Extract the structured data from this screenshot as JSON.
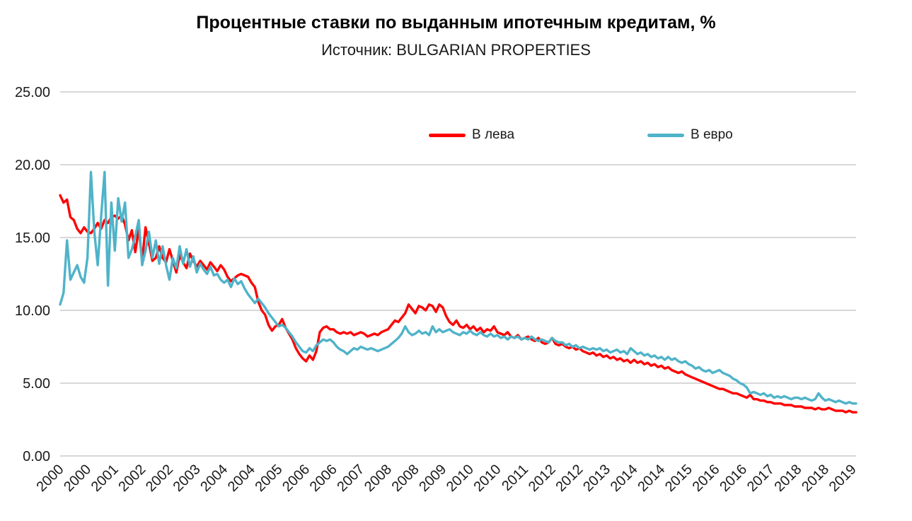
{
  "header": {
    "title": "Процентные ставки по выданным ипотечным кредитам, %",
    "subtitle": "Источник: BULGARIAN PROPERTIES"
  },
  "chart_data": {
    "type": "line",
    "title": "Процентные ставки по выданным ипотечным кредитам, %",
    "subtitle": "Источник: BULGARIAN PROPERTIES",
    "grid": "horizontal",
    "grid_color": "#BFBFBF",
    "axis_text_color": "#1a1a1a",
    "ylim": [
      0,
      25
    ],
    "y_ticks": [
      0,
      5,
      10,
      15,
      20,
      25
    ],
    "y_tick_format": "2dp",
    "x_unit": "month",
    "x_tick_step_months": 8,
    "x_tick_labels": [
      "2000",
      "2000",
      "2001",
      "2002",
      "2002",
      "2003",
      "2004",
      "2004",
      "2005",
      "2006",
      "2006",
      "2007",
      "2008",
      "2008",
      "2009",
      "2010",
      "2010",
      "2011",
      "2012",
      "2012",
      "2013",
      "2014",
      "2014",
      "2015",
      "2016",
      "2016",
      "2017",
      "2018",
      "2018",
      "2019"
    ],
    "legend_position": "top-center-inside",
    "series": [
      {
        "name": "В лева",
        "color": "#FF0000",
        "values": [
          17.9,
          17.4,
          17.6,
          16.4,
          16.2,
          15.6,
          15.3,
          15.7,
          15.4,
          15.3,
          15.6,
          16.0,
          15.6,
          16.2,
          16.0,
          16.4,
          16.5,
          16.3,
          16.5,
          15.9,
          14.8,
          15.5,
          14.0,
          15.6,
          13.4,
          15.7,
          14.6,
          13.4,
          13.6,
          14.4,
          13.6,
          13.3,
          14.2,
          13.4,
          12.6,
          13.8,
          13.3,
          12.9,
          13.9,
          13.4,
          13.0,
          13.4,
          13.1,
          12.8,
          13.3,
          13.0,
          12.7,
          13.1,
          12.8,
          12.3,
          12.0,
          12.2,
          12.4,
          12.5,
          12.4,
          12.3,
          11.9,
          11.6,
          10.6,
          10.0,
          9.7,
          9.0,
          8.6,
          8.9,
          9.0,
          9.4,
          8.8,
          8.4,
          8.0,
          7.4,
          7.0,
          6.7,
          6.5,
          6.9,
          6.6,
          7.2,
          8.5,
          8.8,
          8.9,
          8.7,
          8.7,
          8.5,
          8.4,
          8.5,
          8.4,
          8.5,
          8.3,
          8.4,
          8.5,
          8.4,
          8.2,
          8.3,
          8.4,
          8.3,
          8.5,
          8.6,
          8.7,
          9.0,
          9.3,
          9.2,
          9.5,
          9.8,
          10.4,
          10.1,
          9.8,
          10.3,
          10.2,
          10.0,
          10.4,
          10.3,
          9.9,
          10.4,
          10.2,
          9.6,
          9.2,
          9.0,
          9.3,
          8.9,
          8.8,
          9.0,
          8.7,
          8.9,
          8.6,
          8.8,
          8.5,
          8.7,
          8.6,
          8.9,
          8.5,
          8.4,
          8.3,
          8.5,
          8.2,
          8.1,
          8.3,
          8.0,
          8.1,
          8.2,
          8.0,
          7.9,
          8.1,
          7.8,
          7.7,
          7.8,
          8.1,
          7.7,
          7.6,
          7.7,
          7.5,
          7.4,
          7.5,
          7.3,
          7.4,
          7.2,
          7.1,
          7.0,
          7.1,
          6.9,
          7.0,
          6.8,
          6.9,
          6.7,
          6.8,
          6.6,
          6.7,
          6.5,
          6.6,
          6.4,
          6.6,
          6.4,
          6.5,
          6.3,
          6.4,
          6.2,
          6.3,
          6.1,
          6.2,
          6.0,
          6.1,
          5.9,
          5.8,
          5.7,
          5.8,
          5.6,
          5.5,
          5.4,
          5.3,
          5.2,
          5.1,
          5.0,
          4.9,
          4.8,
          4.7,
          4.6,
          4.6,
          4.5,
          4.4,
          4.3,
          4.3,
          4.2,
          4.1,
          4.0,
          4.2,
          3.9,
          3.9,
          3.8,
          3.8,
          3.7,
          3.7,
          3.6,
          3.6,
          3.6,
          3.5,
          3.5,
          3.5,
          3.4,
          3.4,
          3.4,
          3.3,
          3.3,
          3.3,
          3.2,
          3.3,
          3.2,
          3.2,
          3.3,
          3.2,
          3.1,
          3.1,
          3.1,
          3.0,
          3.1,
          3.0,
          3.0
        ]
      },
      {
        "name": "В евро",
        "color": "#4FB3C9",
        "values": [
          10.4,
          11.2,
          14.8,
          12.1,
          12.6,
          13.1,
          12.3,
          11.9,
          13.6,
          19.5,
          15.4,
          13.1,
          16.4,
          19.5,
          11.7,
          17.4,
          14.1,
          17.7,
          16.1,
          17.4,
          13.6,
          14.2,
          15.1,
          16.2,
          13.1,
          14.1,
          15.4,
          13.6,
          14.8,
          13.2,
          14.4,
          13.1,
          12.1,
          13.6,
          12.9,
          14.4,
          13.2,
          14.2,
          13.0,
          13.7,
          12.6,
          13.2,
          12.8,
          12.5,
          13.0,
          12.4,
          12.5,
          12.1,
          11.9,
          12.1,
          11.6,
          12.2,
          11.8,
          12.0,
          11.5,
          11.1,
          10.8,
          10.5,
          10.8,
          10.5,
          10.2,
          9.8,
          9.5,
          9.2,
          8.9,
          9.0,
          8.8,
          8.5,
          8.2,
          7.8,
          7.5,
          7.2,
          7.1,
          7.4,
          7.2,
          7.6,
          7.8,
          8.0,
          7.9,
          8.0,
          7.8,
          7.5,
          7.3,
          7.2,
          7.0,
          7.2,
          7.4,
          7.3,
          7.5,
          7.4,
          7.3,
          7.4,
          7.3,
          7.2,
          7.3,
          7.4,
          7.5,
          7.7,
          7.9,
          8.1,
          8.4,
          8.9,
          8.5,
          8.3,
          8.4,
          8.6,
          8.4,
          8.5,
          8.3,
          8.9,
          8.5,
          8.7,
          8.5,
          8.6,
          8.7,
          8.5,
          8.4,
          8.3,
          8.5,
          8.4,
          8.6,
          8.4,
          8.3,
          8.5,
          8.3,
          8.2,
          8.4,
          8.2,
          8.3,
          8.1,
          8.2,
          8.0,
          8.2,
          8.1,
          8.2,
          8.0,
          8.1,
          8.0,
          8.2,
          8.0,
          7.9,
          8.0,
          7.9,
          7.8,
          8.1,
          7.9,
          7.8,
          7.8,
          7.6,
          7.7,
          7.5,
          7.6,
          7.4,
          7.5,
          7.4,
          7.3,
          7.4,
          7.3,
          7.4,
          7.2,
          7.3,
          7.1,
          7.2,
          7.3,
          7.1,
          7.2,
          7.0,
          7.4,
          7.2,
          7.0,
          7.1,
          6.9,
          7.0,
          6.8,
          6.9,
          6.7,
          6.8,
          6.6,
          6.8,
          6.6,
          6.7,
          6.5,
          6.4,
          6.5,
          6.3,
          6.2,
          6.0,
          6.1,
          5.9,
          5.8,
          5.9,
          5.7,
          5.8,
          5.9,
          5.7,
          5.6,
          5.5,
          5.3,
          5.2,
          5.0,
          4.9,
          4.7,
          4.3,
          4.4,
          4.3,
          4.2,
          4.3,
          4.1,
          4.2,
          4.0,
          4.1,
          4.0,
          4.1,
          4.0,
          3.9,
          4.0,
          4.0,
          3.9,
          4.0,
          3.9,
          3.8,
          3.9,
          4.3,
          4.0,
          3.8,
          3.9,
          3.8,
          3.7,
          3.8,
          3.7,
          3.6,
          3.7,
          3.6,
          3.6
        ]
      }
    ]
  }
}
